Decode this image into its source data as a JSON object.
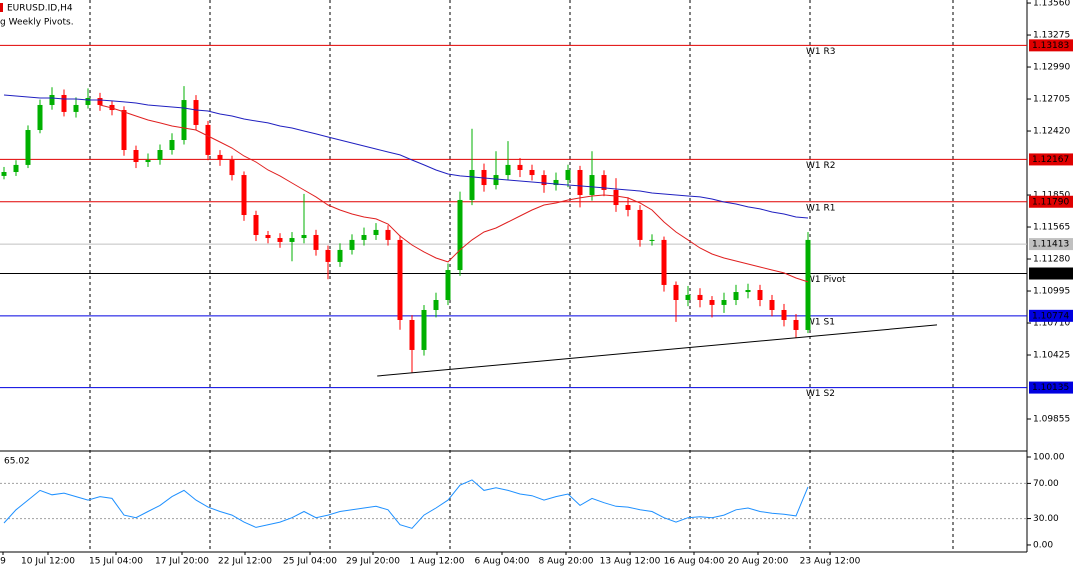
{
  "chart_data": {
    "type": "candlestick",
    "title": "EURUSD.ID,H4",
    "subtitle": "g Weekly Pivots.",
    "up_color": "#00b000",
    "down_color": "#ff0000",
    "x_labels": [
      "9",
      "10 Jul 12:00",
      "15 Jul 04:00",
      "17 Jul 20:00",
      "22 Jul 12:00",
      "25 Jul 04:00",
      "29 Jul 20:00",
      "1 Aug 12:00",
      "6 Aug 04:00",
      "8 Aug 20:00",
      "13 Aug 12:00",
      "16 Aug 04:00",
      "20 Aug 20:00",
      "23 Aug 12:00"
    ],
    "xlim": [
      -0.333,
      85.25
    ],
    "ylim": [
      1.09579,
      1.13587
    ],
    "yticks": [
      {
        "value": 1.1356,
        "label": "1.13560"
      },
      {
        "value": 1.13275,
        "label": "1.13275"
      },
      {
        "value": 1.1299,
        "label": "1.12990"
      },
      {
        "value": 1.12705,
        "label": "1.12705"
      },
      {
        "value": 1.1242,
        "label": "1.12420"
      },
      {
        "value": 1.1185,
        "label": "1.11850"
      },
      {
        "value": 1.11565,
        "label": "1.11565"
      },
      {
        "value": 1.1128,
        "label": "1.11280"
      },
      {
        "value": 1.10995,
        "label": "1.10995"
      },
      {
        "value": 1.1071,
        "label": "1.10710"
      },
      {
        "value": 1.10425,
        "label": "1.10425"
      },
      {
        "value": 1.09855,
        "label": "1.09855"
      }
    ],
    "open": [
      1.1202,
      1.12055,
      1.12118,
      1.12429,
      1.12652,
      1.12741,
      1.1259,
      1.12652,
      1.12714,
      1.12652,
      1.12607,
      1.12251,
      1.12144,
      1.12162,
      1.12251,
      1.1234,
      1.12696,
      1.12474,
      1.12207,
      1.12162,
      1.12028,
      1.11672,
      1.11494,
      1.11467,
      1.11432,
      1.11467,
      1.11494,
      1.11361,
      1.11254,
      1.11361,
      1.1145,
      1.11494,
      1.11539,
      1.1145,
      1.10737,
      1.1047,
      1.10826,
      1.10915,
      1.11182,
      1.11806,
      1.12073,
      1.11939,
      1.12028,
      1.12118,
      1.12073,
      1.12028,
      1.11939,
      1.11984,
      1.12073,
      1.1185,
      1.12028,
      1.11895,
      1.11761,
      1.11717,
      1.1145,
      1.1145,
      1.11049,
      1.10915,
      1.1096,
      1.10915,
      1.10871,
      1.10915,
      1.10986,
      1.11004,
      1.10915,
      1.10826,
      1.10737,
      1.10648
    ],
    "high": [
      1.121,
      1.1216,
      1.1247,
      1.127,
      1.1281,
      1.1279,
      1.1272,
      1.128,
      1.1276,
      1.1269,
      1.1264,
      1.1229,
      1.1222,
      1.123,
      1.124,
      1.1282,
      1.1274,
      1.1251,
      1.1225,
      1.122,
      1.1206,
      1.1171,
      1.1153,
      1.1151,
      1.1152,
      1.1186,
      1.1154,
      1.114,
      1.1142,
      1.115,
      1.1156,
      1.116,
      1.1158,
      1.1149,
      1.1078,
      1.1087,
      1.1098,
      1.1124,
      1.1188,
      1.1244,
      1.1213,
      1.1224,
      1.1233,
      1.1218,
      1.1212,
      1.1207,
      1.1205,
      1.1212,
      1.1211,
      1.1224,
      1.1207,
      1.12,
      1.1183,
      1.1176,
      1.115,
      1.1148,
      1.1108,
      1.1104,
      1.1102,
      1.1095,
      1.1098,
      1.1105,
      1.1106,
      1.1105,
      1.1096,
      1.1088,
      1.1079,
      1.1152
    ],
    "low": [
      1.1199,
      1.1202,
      1.1209,
      1.124,
      1.1261,
      1.1255,
      1.1254,
      1.1262,
      1.126,
      1.1256,
      1.122,
      1.1209,
      1.121,
      1.1212,
      1.1221,
      1.123,
      1.1243,
      1.1216,
      1.1211,
      1.1198,
      1.1162,
      1.1144,
      1.1142,
      1.1138,
      1.1126,
      1.1142,
      1.1131,
      1.111,
      1.1121,
      1.1132,
      1.114,
      1.1145,
      1.114,
      1.1065,
      1.1027,
      1.1042,
      1.1076,
      1.1087,
      1.1113,
      1.1176,
      1.1188,
      1.119,
      1.1198,
      1.1201,
      1.1198,
      1.1187,
      1.1189,
      1.1192,
      1.1174,
      1.118,
      1.1184,
      1.117,
      1.1166,
      1.1139,
      1.114,
      1.1099,
      1.1072,
      1.1086,
      1.1085,
      1.1076,
      1.108,
      1.1087,
      1.1093,
      1.1086,
      1.1077,
      1.1068,
      1.1058,
      1.1062
    ],
    "close": [
      1.12055,
      1.12118,
      1.12429,
      1.12652,
      1.12741,
      1.1259,
      1.12652,
      1.12714,
      1.12652,
      1.12607,
      1.12251,
      1.12144,
      1.12162,
      1.12251,
      1.1234,
      1.12696,
      1.12474,
      1.12207,
      1.12162,
      1.12028,
      1.11672,
      1.11494,
      1.11467,
      1.11432,
      1.11467,
      1.11494,
      1.11361,
      1.11254,
      1.11361,
      1.1145,
      1.11494,
      1.11539,
      1.1145,
      1.10737,
      1.1047,
      1.10826,
      1.10915,
      1.11182,
      1.11806,
      1.12073,
      1.11939,
      1.12028,
      1.12118,
      1.12073,
      1.12028,
      1.11939,
      1.11984,
      1.12073,
      1.1185,
      1.12028,
      1.11895,
      1.11761,
      1.11717,
      1.1145,
      1.1145,
      1.11049,
      1.10915,
      1.1096,
      1.10915,
      1.10871,
      1.10915,
      1.10986,
      1.11004,
      1.10915,
      1.10826,
      1.10737,
      1.10648,
      1.1145
    ],
    "moving_averages": [
      {
        "color": "#e02020",
        "values": [
          null,
          null,
          null,
          null,
          null,
          null,
          null,
          null,
          1.12652,
          1.12625,
          1.1259,
          1.12554,
          1.12518,
          1.12492,
          1.12465,
          1.12447,
          1.12429,
          1.12376,
          1.12322,
          1.12269,
          1.12198,
          1.12144,
          1.12073,
          1.1202,
          1.11957,
          1.11895,
          1.11833,
          1.11761,
          1.11717,
          1.11681,
          1.11654,
          1.11637,
          1.11592,
          1.11485,
          1.11405,
          1.11343,
          1.11289,
          1.11254,
          1.11361,
          1.1145,
          1.11521,
          1.11556,
          1.1161,
          1.11663,
          1.11717,
          1.11761,
          1.11779,
          1.11806,
          1.11824,
          1.11841,
          1.1185,
          1.11841,
          1.11824,
          1.11779,
          1.11717,
          1.1161,
          1.11521,
          1.1145,
          1.11378,
          1.11325,
          1.11289,
          1.11262,
          1.11236,
          1.11209,
          1.11182,
          1.11156,
          1.11111,
          1.11076
        ]
      },
      {
        "color": "#2020c0",
        "values": [
          1.12741,
          1.12732,
          1.12723,
          1.12714,
          1.12714,
          1.12705,
          1.12705,
          1.12696,
          1.12696,
          1.12688,
          1.12679,
          1.1267,
          1.12652,
          1.12643,
          1.12634,
          1.12625,
          1.12607,
          1.12598,
          1.12572,
          1.12554,
          1.12527,
          1.12509,
          1.12492,
          1.12465,
          1.12447,
          1.1242,
          1.12394,
          1.12367,
          1.1234,
          1.12313,
          1.12287,
          1.1226,
          1.12233,
          1.12207,
          1.12162,
          1.12118,
          1.12073,
          1.12037,
          1.1202,
          1.12011,
          1.12002,
          1.11993,
          1.11984,
          1.11975,
          1.11966,
          1.11957,
          1.11948,
          1.11939,
          1.11931,
          1.11922,
          1.11913,
          1.11904,
          1.11895,
          1.11886,
          1.11868,
          1.11859,
          1.1185,
          1.11841,
          1.11833,
          1.11815,
          1.11788,
          1.1177,
          1.11744,
          1.11726,
          1.11699,
          1.11681,
          1.11654,
          1.11645
        ]
      }
    ],
    "trendline": {
      "color": "#000000",
      "x": [
        31.1,
        77.75
      ],
      "y": [
        1.10238,
        1.10693
      ]
    },
    "pivots": {
      "names": [
        "W1 R3",
        "W1 R2",
        "W1 R1",
        "W1 Pivot",
        "W1 S1",
        "W1 S2"
      ],
      "values": [
        1.13183,
        1.12167,
        1.1179,
        1.11151,
        1.10774,
        1.10135
      ],
      "value_labels": [
        "1.13183",
        "1.12167",
        "1.11790",
        "1.11151",
        "1.10774",
        "1.10135"
      ],
      "colors": [
        "#e00000",
        "#e00000",
        "#e00000",
        "#000000",
        "#0000e0",
        "#0000e0"
      ]
    },
    "last_price": 1.11413,
    "rsi": {
      "color": "#1e90ff",
      "last": 65.02,
      "ylim": [
        -8,
        105.7
      ],
      "yticks": [
        {
          "value": 100,
          "label": "100.00"
        },
        {
          "value": 70,
          "label": "70.00"
        },
        {
          "value": 30,
          "label": "30.00"
        },
        {
          "value": 0,
          "label": "0.00"
        }
      ],
      "levels": [
        70,
        30
      ],
      "values": [
        25,
        40,
        51,
        62,
        57,
        59,
        55,
        51,
        55,
        53,
        34,
        31,
        38,
        45,
        55,
        62,
        51,
        43,
        38,
        34,
        26,
        20,
        23,
        26,
        31,
        38,
        31,
        34,
        38,
        40,
        42,
        44,
        40,
        23,
        19,
        34,
        42,
        51,
        68,
        74,
        62,
        65,
        62,
        58,
        56,
        51,
        55,
        58,
        45,
        53,
        48,
        44,
        43,
        40,
        38,
        31,
        26,
        31,
        32,
        31,
        34,
        40,
        42,
        38,
        36,
        35,
        33,
        66
      ]
    }
  }
}
